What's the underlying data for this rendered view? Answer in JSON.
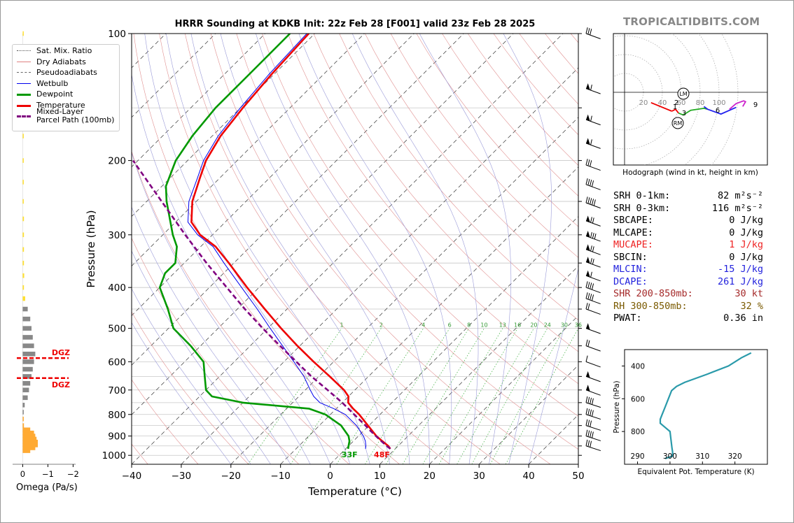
{
  "title": "HRRR Sounding at KDKB Init: 22z Feb 28 [F001] valid 23z Feb 28 2025",
  "brand": "TROPICALTIDBITS.COM",
  "legend": [
    {
      "label": "Sat. Mix. Ratio",
      "color": "#555555",
      "style": "dotted"
    },
    {
      "label": "Dry Adiabats",
      "color": "#e08080",
      "style": "thin"
    },
    {
      "label": "Pseudoadiabats",
      "color": "#666666",
      "style": "dashed"
    },
    {
      "label": "Wetbulb",
      "color": "#0000ee",
      "style": "thin"
    },
    {
      "label": "Dewpoint",
      "color": "#009900",
      "style": "thick"
    },
    {
      "label": "Temperature",
      "color": "#ee0000",
      "style": "thick"
    },
    {
      "label": "Mixed-Layer\nParcel Path (100mb)",
      "color": "#800080",
      "style": "dashed-thick"
    }
  ],
  "omega": {
    "xlabel": "Omega (Pa/s)",
    "ticks": [
      "0",
      "−1",
      "−2"
    ],
    "dgz_label": "DGZ",
    "dgz_color": "#ee0000"
  },
  "surface_labels": {
    "dewpoint": "33F",
    "temperature": "48F"
  },
  "param_table": [
    {
      "label": "SRH 0-1km:",
      "value": "82",
      "unit": "m²s⁻²",
      "color": "#000000"
    },
    {
      "label": "SRH 0-3km:",
      "value": "116",
      "unit": "m²s⁻²",
      "color": "#000000"
    },
    {
      "label": "SBCAPE:",
      "value": "0",
      "unit": "J/kg",
      "color": "#000000"
    },
    {
      "label": "MLCAPE:",
      "value": "0",
      "unit": "J/kg",
      "color": "#000000"
    },
    {
      "label": "MUCAPE:",
      "value": "1",
      "unit": "J/kg",
      "color": "#ee2222"
    },
    {
      "label": "SBCIN:",
      "value": "0",
      "unit": "J/kg",
      "color": "#000000"
    },
    {
      "label": "MLCIN:",
      "value": "-15",
      "unit": "J/kg",
      "color": "#2222dd"
    },
    {
      "label": "DCAPE:",
      "value": "261",
      "unit": "J/kg",
      "color": "#2222dd"
    },
    {
      "label": "SHR 200-850mb:",
      "value": "30",
      "unit": "kt",
      "color": "#a52a2a"
    },
    {
      "label": "RH 300-850mb:",
      "value": "32",
      "unit": "%",
      "color": "#7a5a00"
    },
    {
      "label": "PWAT:",
      "value": "0.36",
      "unit": "in",
      "color": "#000000"
    }
  ],
  "hodograph": {
    "caption": "Hodograph (wind in kt, height in km)",
    "ring_labels": [
      "20",
      "40",
      "60",
      "80",
      "100"
    ],
    "markers": [
      "LM",
      "RM"
    ],
    "height_labels": [
      "1",
      "2",
      "3",
      "6",
      "9"
    ]
  },
  "chart_data": [
    {
      "type": "line",
      "title": "HRRR Sounding at KDKB Init: 22z Feb 28 [F001] valid 23z Feb 28 2025",
      "xlabel": "Temperature (°C)",
      "ylabel": "Pressure (hPa)",
      "y_scale": "log",
      "xlim": [
        -40,
        50
      ],
      "ylim": [
        1050,
        100
      ],
      "x_ticks": [
        "−40",
        "−30",
        "−20",
        "−10",
        "0",
        "10",
        "20",
        "30",
        "40",
        "50"
      ],
      "y_ticks": [
        "100",
        "200",
        "300",
        "400",
        "500",
        "600",
        "700",
        "800",
        "900",
        "1000"
      ],
      "mixing_ratio_labels": [
        "1",
        "2",
        "4",
        "6",
        "8",
        "10",
        "13",
        "16",
        "20",
        "24",
        "30",
        "36"
      ],
      "series": [
        {
          "name": "Temperature",
          "color": "#ee0000",
          "p": [
            965,
            950,
            925,
            900,
            850,
            800,
            775,
            750,
            725,
            700,
            650,
            600,
            550,
            500,
            450,
            400,
            350,
            320,
            300,
            280,
            250,
            220,
            200,
            175,
            150,
            125,
            100
          ],
          "t": [
            9.0,
            8.0,
            5.8,
            3.6,
            -0.2,
            -4.2,
            -6.6,
            -8.8,
            -10.0,
            -12.2,
            -17.8,
            -24.0,
            -30.5,
            -37.3,
            -44.5,
            -52.4,
            -61.0,
            -67.0,
            -72.5,
            -76.8,
            -80.8,
            -84.0,
            -86.3,
            -88.3,
            -89.5,
            -90.5,
            -91.2
          ]
        },
        {
          "name": "Dewpoint",
          "color": "#009900",
          "p": [
            965,
            950,
            925,
            900,
            850,
            800,
            775,
            750,
            725,
            700,
            650,
            600,
            550,
            500,
            450,
            400,
            370,
            350,
            320,
            300,
            250,
            230,
            200,
            175,
            150,
            125,
            100
          ],
          "t": [
            0.5,
            0.0,
            -0.8,
            -2.0,
            -5.6,
            -11.0,
            -15.5,
            -30.0,
            -37.5,
            -40.0,
            -43.0,
            -46.2,
            -52.0,
            -59.0,
            -64.0,
            -70.0,
            -71.8,
            -71.8,
            -74.8,
            -78.0,
            -86.0,
            -89.2,
            -92.4,
            -94.0,
            -95.0,
            -95.0,
            -95.0
          ]
        },
        {
          "name": "Wetbulb",
          "color": "#0000ee",
          "p": [
            965,
            950,
            925,
            900,
            850,
            800,
            775,
            750,
            725,
            700,
            650,
            600,
            550,
            500,
            450,
            400,
            350,
            320,
            300,
            280,
            250,
            220,
            200,
            175,
            150,
            125,
            100
          ],
          "t": [
            4.0,
            3.5,
            2.4,
            1.0,
            -2.5,
            -7.0,
            -10.5,
            -14.5,
            -17.0,
            -19.0,
            -23.0,
            -28.0,
            -33.5,
            -39.5,
            -46.0,
            -53.5,
            -62.0,
            -67.5,
            -73.0,
            -77.5,
            -81.5,
            -84.5,
            -86.8,
            -88.8,
            -90.0,
            -91.0,
            -91.6
          ]
        },
        {
          "name": "Mixed-Layer Parcel Path (100mb)",
          "color": "#800080",
          "p": [
            965,
            950,
            925,
            900,
            875,
            850,
            800,
            750,
            700,
            650,
            600,
            550,
            500,
            450,
            400,
            350,
            300,
            250,
            200
          ],
          "t": [
            9.0,
            7.7,
            5.6,
            3.5,
            1.4,
            -0.7,
            -5.2,
            -10.0,
            -15.5,
            -21.5,
            -27.5,
            -34.0,
            -41.0,
            -48.5,
            -56.5,
            -65.5,
            -75.5,
            -87.0,
            -101.0
          ]
        }
      ]
    },
    {
      "type": "bar",
      "xlabel": "Omega (Pa/s)",
      "xlim": [
        0.4,
        -2.1
      ],
      "p": [
        975,
        960,
        945,
        930,
        915,
        900,
        885,
        870,
        850,
        820,
        790,
        760,
        730,
        700,
        675,
        650,
        625,
        600,
        575,
        550,
        525,
        500,
        475,
        450,
        425,
        400,
        375,
        350,
        325,
        300,
        275,
        250,
        225,
        200,
        175,
        150,
        125,
        100
      ],
      "omega": [
        -0.3,
        -0.5,
        -0.6,
        -0.6,
        -0.55,
        -0.5,
        -0.45,
        -0.3,
        -0.05,
        0.02,
        -0.02,
        -0.08,
        -0.2,
        -0.25,
        -0.3,
        -0.35,
        -0.4,
        -0.45,
        -0.5,
        -0.45,
        -0.4,
        -0.35,
        -0.3,
        -0.2,
        -0.1,
        -0.05,
        -0.06,
        -0.05,
        -0.05,
        -0.05,
        -0.05,
        -0.04,
        -0.04,
        -0.04,
        -0.03,
        -0.03,
        -0.03,
        -0.02
      ],
      "dgz_p": [
        588,
        656
      ],
      "pos_color": "#888888",
      "neg_color": "#ffaa33",
      "upper_color": "#ffe033"
    },
    {
      "type": "line",
      "xlabel": "Equivalent Pot. Temperature (K)",
      "ylabel": "Pressure (hPa)",
      "x_ticks": [
        "290",
        "300",
        "310",
        "320"
      ],
      "y_ticks": [
        "400",
        "600",
        "800"
      ],
      "xlim": [
        286,
        330
      ],
      "ylim": [
        1000,
        300
      ],
      "series": [
        {
          "name": "",
          "color": "#2a9aaa",
          "p": [
            965,
            950,
            925,
            900,
            850,
            800,
            775,
            750,
            725,
            700,
            650,
            600,
            550,
            525,
            500,
            450,
            400,
            350,
            320
          ],
          "theta_e": [
            298.5,
            300.8,
            300.8,
            300.6,
            300.3,
            300.0,
            298.5,
            297.0,
            297.0,
            297.5,
            298.5,
            299.5,
            300.5,
            302.0,
            304.5,
            311.5,
            318.0,
            322.0,
            325.0
          ]
        }
      ]
    }
  ]
}
